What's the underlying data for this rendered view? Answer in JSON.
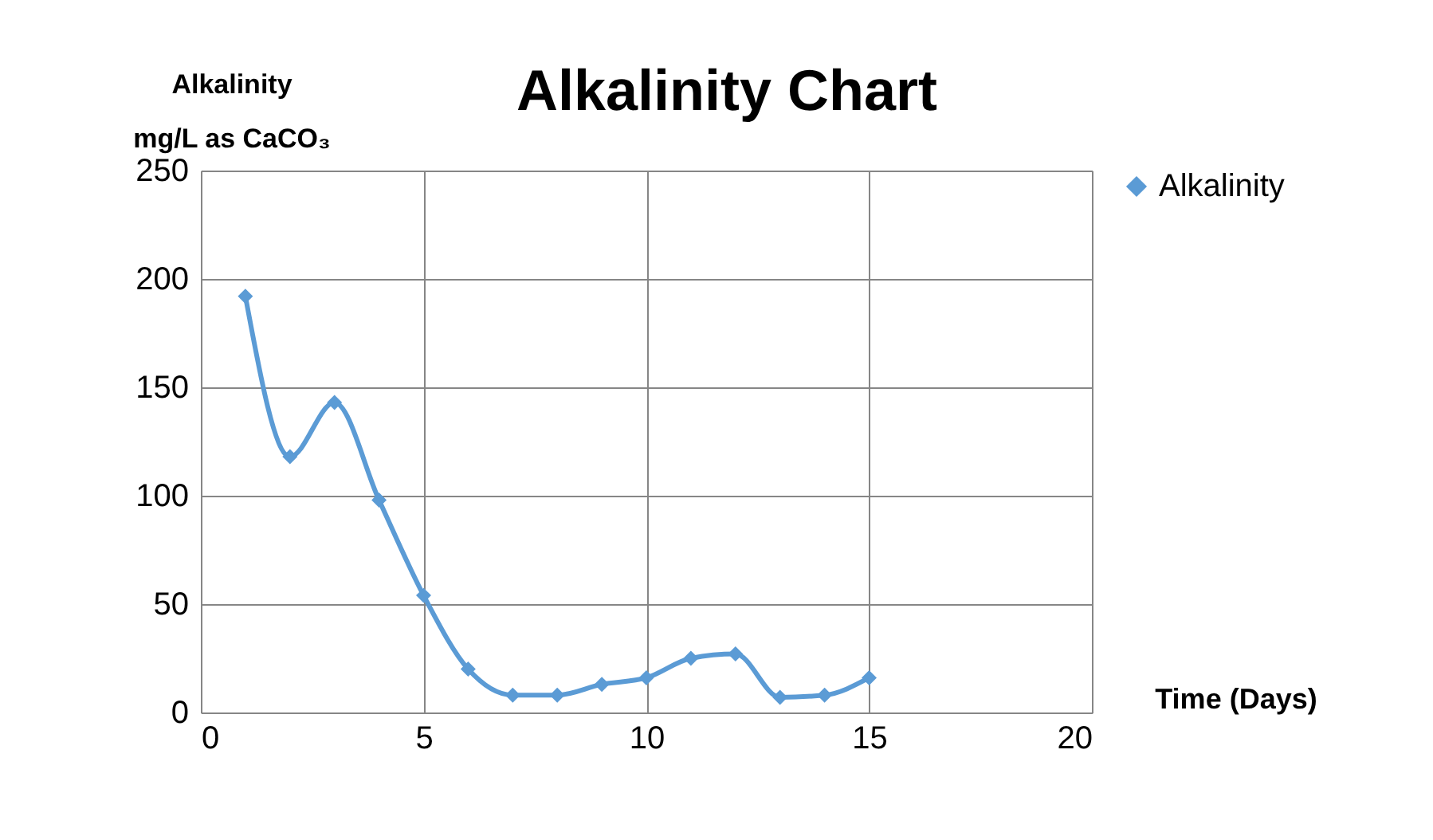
{
  "chart_data": {
    "type": "line",
    "title": "Alkalinity Chart",
    "ylabel": "Alkalinity\nmg/L as CaCO₃",
    "xlabel": "Time (Days)",
    "x": [
      1,
      2,
      3,
      4,
      5,
      6,
      7,
      8,
      9,
      10,
      11,
      12,
      13,
      14,
      15
    ],
    "series": [
      {
        "name": "Alkalinity",
        "color": "#5b9bd5",
        "values": [
          192,
          118,
          143,
          98,
          54,
          20,
          8,
          8,
          13,
          16,
          25,
          27,
          7,
          8,
          16
        ]
      }
    ],
    "xlim": [
      0,
      20
    ],
    "xticks": [
      0,
      5,
      10,
      15,
      20
    ],
    "ylim": [
      0,
      250
    ],
    "yticks": [
      0,
      50,
      100,
      150,
      200,
      250
    ],
    "grid": true,
    "legend": "right",
    "marker": "diamond",
    "line_style": "solid"
  }
}
